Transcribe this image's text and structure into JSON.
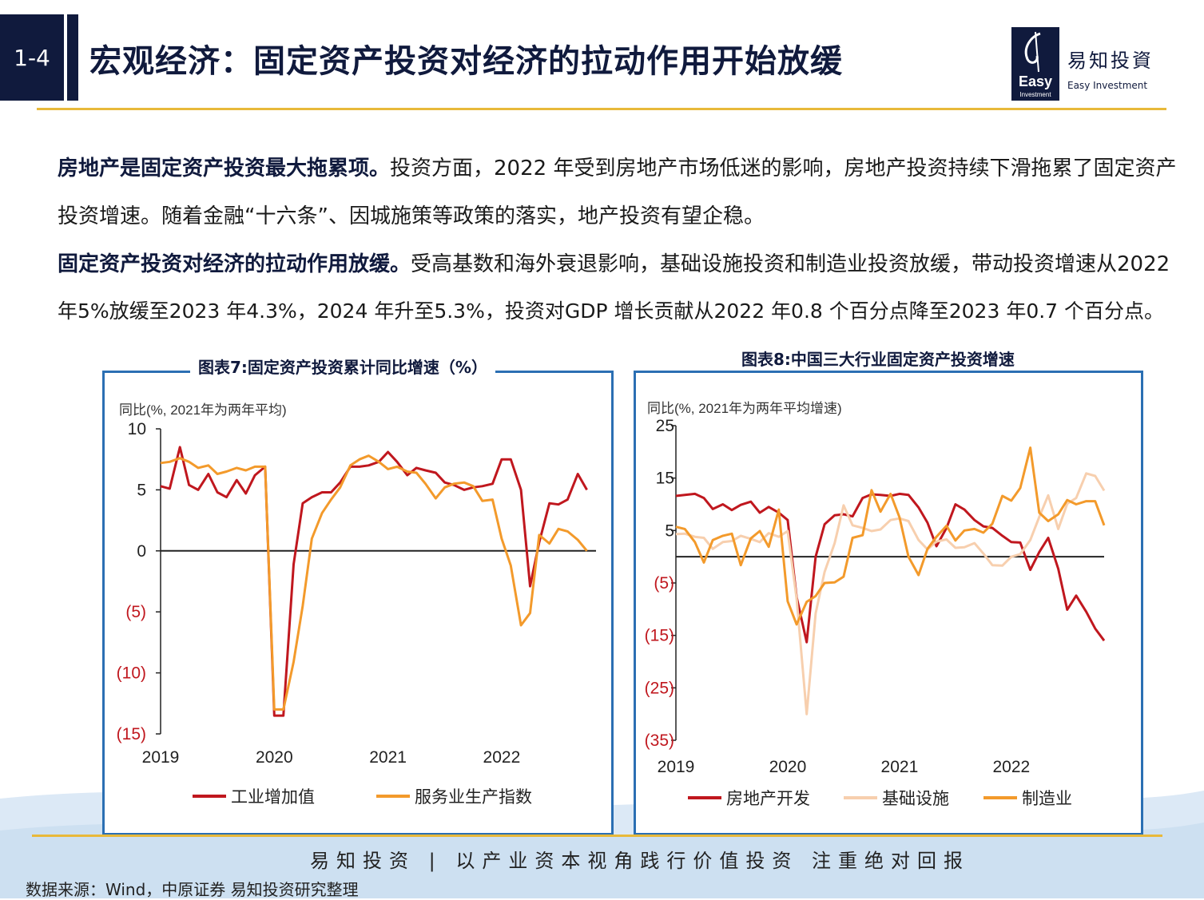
{
  "header": {
    "section_number": "1-4",
    "title": "宏观经济：固定资产投资对经济的拉动作用开始放缓",
    "logo_cn": "易知投資",
    "logo_en": "Easy Investment",
    "logo_mark": "Easy",
    "logo_mark_sub": "Investment"
  },
  "body": {
    "p1_bold": "房地产是固定资产投资最大拖累项。",
    "p1_rest": "投资方面，2022 年受到房地产市场低迷的影响，房地产投资持续下滑拖累了固定资产",
    "p1_line2": "投资增速。随着金融“十六条”、因城施策等政策的落实，地产投资有望企稳。",
    "p2_bold": "固定资产投资对经济的拉动作用放缓。",
    "p2_rest": "受高基数和海外衰退影响，基础设施投资和制造业投资放缓，带动投资增速从2022",
    "p2_line2": "年5%放缓至2023 年4.3%，2024 年升至5.3%，投资对GDP 增长贡献从2022 年0.8 个百分点降至2023 年0.7 个百分点。"
  },
  "colors": {
    "navy": "#101a3d",
    "red": "#c0171e",
    "orange": "#f39a2b",
    "peach": "#f7cfae",
    "gold": "#e8b93a",
    "frame": "#2b6fb3"
  },
  "chart_data": [
    {
      "type": "line",
      "title": "图表7:固定资产投资累计同比增速（%）",
      "ylabel": "同比(%, 2021年为两年平均)",
      "ylim": [
        -15,
        10
      ],
      "yticks": [
        10,
        5,
        0,
        -5,
        -10,
        -15
      ],
      "ytick_labels": [
        "10",
        "5",
        "0",
        "(5)",
        "(10)",
        "(15)"
      ],
      "xlim": [
        2019.0,
        2022.83
      ],
      "xticks": [
        2019,
        2020,
        2021,
        2022
      ],
      "xtick_labels": [
        "2019",
        "2020",
        "2021",
        "2022"
      ],
      "legend_position": "bottom",
      "series": [
        {
          "name": "工业增加值",
          "color": "#c0171e",
          "points": [
            [
              2019.0,
              5.3
            ],
            [
              2019.08,
              5.1
            ],
            [
              2019.17,
              8.5
            ],
            [
              2019.25,
              5.4
            ],
            [
              2019.33,
              5.0
            ],
            [
              2019.42,
              6.3
            ],
            [
              2019.5,
              4.8
            ],
            [
              2019.58,
              4.4
            ],
            [
              2019.67,
              5.8
            ],
            [
              2019.75,
              4.7
            ],
            [
              2019.83,
              6.2
            ],
            [
              2019.92,
              6.9
            ],
            [
              2020.0,
              -13.5
            ],
            [
              2020.08,
              -13.5
            ],
            [
              2020.17,
              -1.1
            ],
            [
              2020.25,
              3.9
            ],
            [
              2020.33,
              4.4
            ],
            [
              2020.42,
              4.8
            ],
            [
              2020.5,
              4.8
            ],
            [
              2020.58,
              5.6
            ],
            [
              2020.67,
              6.9
            ],
            [
              2020.75,
              6.9
            ],
            [
              2020.83,
              7.0
            ],
            [
              2020.92,
              7.3
            ],
            [
              2021.0,
              8.1
            ],
            [
              2021.08,
              7.3
            ],
            [
              2021.17,
              6.2
            ],
            [
              2021.25,
              6.8
            ],
            [
              2021.33,
              6.6
            ],
            [
              2021.42,
              6.4
            ],
            [
              2021.5,
              5.6
            ],
            [
              2021.58,
              5.4
            ],
            [
              2021.67,
              5.0
            ],
            [
              2021.75,
              5.2
            ],
            [
              2021.83,
              5.3
            ],
            [
              2021.92,
              5.5
            ],
            [
              2022.0,
              7.5
            ],
            [
              2022.08,
              7.5
            ],
            [
              2022.17,
              5.0
            ],
            [
              2022.25,
              -2.9
            ],
            [
              2022.33,
              0.7
            ],
            [
              2022.42,
              3.9
            ],
            [
              2022.5,
              3.8
            ],
            [
              2022.58,
              4.2
            ],
            [
              2022.67,
              6.3
            ],
            [
              2022.75,
              5.0
            ]
          ]
        },
        {
          "name": "服务业生产指数",
          "color": "#f39a2b",
          "points": [
            [
              2019.0,
              7.2
            ],
            [
              2019.08,
              7.3
            ],
            [
              2019.17,
              7.6
            ],
            [
              2019.25,
              7.3
            ],
            [
              2019.33,
              6.8
            ],
            [
              2019.42,
              7.0
            ],
            [
              2019.5,
              6.3
            ],
            [
              2019.58,
              6.5
            ],
            [
              2019.67,
              6.8
            ],
            [
              2019.75,
              6.6
            ],
            [
              2019.83,
              6.9
            ],
            [
              2019.92,
              6.9
            ],
            [
              2020.0,
              -13.0
            ],
            [
              2020.08,
              -13.0
            ],
            [
              2020.17,
              -9.1
            ],
            [
              2020.25,
              -4.5
            ],
            [
              2020.33,
              1.0
            ],
            [
              2020.42,
              3.1
            ],
            [
              2020.5,
              4.2
            ],
            [
              2020.58,
              5.2
            ],
            [
              2020.67,
              7.0
            ],
            [
              2020.75,
              7.5
            ],
            [
              2020.83,
              7.8
            ],
            [
              2020.92,
              7.3
            ],
            [
              2021.0,
              6.7
            ],
            [
              2021.08,
              6.9
            ],
            [
              2021.17,
              6.5
            ],
            [
              2021.25,
              6.4
            ],
            [
              2021.33,
              5.5
            ],
            [
              2021.42,
              4.3
            ],
            [
              2021.5,
              5.2
            ],
            [
              2021.58,
              5.5
            ],
            [
              2021.67,
              5.6
            ],
            [
              2021.75,
              5.3
            ],
            [
              2021.83,
              4.1
            ],
            [
              2021.92,
              4.2
            ],
            [
              2022.0,
              1.0
            ],
            [
              2022.08,
              -1.2
            ],
            [
              2022.17,
              -6.1
            ],
            [
              2022.25,
              -5.1
            ],
            [
              2022.33,
              1.3
            ],
            [
              2022.42,
              0.6
            ],
            [
              2022.5,
              1.8
            ],
            [
              2022.58,
              1.6
            ],
            [
              2022.67,
              0.9
            ],
            [
              2022.75,
              0.0
            ]
          ]
        }
      ]
    },
    {
      "type": "line",
      "title": "图表8:中国三大行业固定资产投资增速",
      "ylabel": "同比(%, 2021年为两年平均增速)",
      "ylim": [
        -35,
        25
      ],
      "yticks": [
        25,
        15,
        5,
        -5,
        -15,
        -25,
        -35
      ],
      "ytick_labels": [
        "25",
        "15",
        "5",
        "(5)",
        "(15)",
        "(25)",
        "(35)"
      ],
      "xlim": [
        2019.0,
        2022.83
      ],
      "xticks": [
        2019,
        2020,
        2021,
        2022
      ],
      "xtick_labels": [
        "2019",
        "2020",
        "2021",
        "2022"
      ],
      "legend_position": "bottom",
      "series": [
        {
          "name": "房地产开发",
          "color": "#c0171e",
          "points": [
            [
              2019.0,
              11.6
            ],
            [
              2019.08,
              11.8
            ],
            [
              2019.17,
              12.0
            ],
            [
              2019.25,
              11.2
            ],
            [
              2019.33,
              9.1
            ],
            [
              2019.42,
              10.0
            ],
            [
              2019.5,
              8.9
            ],
            [
              2019.58,
              9.9
            ],
            [
              2019.67,
              10.5
            ],
            [
              2019.75,
              8.4
            ],
            [
              2019.83,
              9.5
            ],
            [
              2019.92,
              8.4
            ],
            [
              2020.0,
              7.0
            ],
            [
              2020.08,
              -7.7
            ],
            [
              2020.17,
              -16.3
            ],
            [
              2020.25,
              0.0
            ],
            [
              2020.33,
              6.2
            ],
            [
              2020.42,
              7.9
            ],
            [
              2020.5,
              8.1
            ],
            [
              2020.58,
              7.7
            ],
            [
              2020.67,
              11.2
            ],
            [
              2020.75,
              11.9
            ],
            [
              2020.83,
              11.8
            ],
            [
              2020.92,
              11.6
            ],
            [
              2021.0,
              12.0
            ],
            [
              2021.08,
              11.8
            ],
            [
              2021.17,
              9.4
            ],
            [
              2021.25,
              6.5
            ],
            [
              2021.33,
              2.0
            ],
            [
              2021.42,
              5.5
            ],
            [
              2021.5,
              10.0
            ],
            [
              2021.58,
              9.0
            ],
            [
              2021.67,
              7.0
            ],
            [
              2021.75,
              5.8
            ],
            [
              2021.83,
              5.5
            ],
            [
              2021.92,
              4.0
            ],
            [
              2022.0,
              2.8
            ],
            [
              2022.08,
              2.7
            ],
            [
              2022.17,
              -2.5
            ],
            [
              2022.25,
              0.9
            ],
            [
              2022.33,
              3.6
            ],
            [
              2022.42,
              -2.3
            ],
            [
              2022.5,
              -10.1
            ],
            [
              2022.58,
              -7.4
            ],
            [
              2022.67,
              -10.5
            ],
            [
              2022.75,
              -13.7
            ],
            [
              2022.83,
              -16.0
            ]
          ]
        },
        {
          "name": "基础设施",
          "color": "#f7cfae",
          "points": [
            [
              2019.0,
              4.3
            ],
            [
              2019.08,
              4.4
            ],
            [
              2019.17,
              3.8
            ],
            [
              2019.25,
              3.6
            ],
            [
              2019.33,
              1.5
            ],
            [
              2019.42,
              2.8
            ],
            [
              2019.5,
              3.0
            ],
            [
              2019.58,
              4.0
            ],
            [
              2019.67,
              3.4
            ],
            [
              2019.75,
              2.8
            ],
            [
              2019.83,
              4.5
            ],
            [
              2019.92,
              3.8
            ],
            [
              2020.0,
              4.9
            ],
            [
              2020.08,
              -8.0
            ],
            [
              2020.17,
              -30.0
            ],
            [
              2020.25,
              -10.8
            ],
            [
              2020.33,
              -2.9
            ],
            [
              2020.42,
              2.6
            ],
            [
              2020.5,
              9.8
            ],
            [
              2020.58,
              6.0
            ],
            [
              2020.67,
              5.5
            ],
            [
              2020.75,
              4.9
            ],
            [
              2020.83,
              5.2
            ],
            [
              2020.92,
              7.0
            ],
            [
              2021.0,
              7.3
            ],
            [
              2021.08,
              6.8
            ],
            [
              2021.17,
              3.2
            ],
            [
              2021.25,
              1.4
            ],
            [
              2021.33,
              2.9
            ],
            [
              2021.42,
              3.3
            ],
            [
              2021.5,
              1.7
            ],
            [
              2021.58,
              1.8
            ],
            [
              2021.67,
              2.6
            ],
            [
              2021.75,
              0.6
            ],
            [
              2021.83,
              -1.6
            ],
            [
              2021.92,
              -1.7
            ],
            [
              2022.0,
              0.0
            ],
            [
              2022.08,
              0.5
            ],
            [
              2022.17,
              3.2
            ],
            [
              2022.25,
              7.6
            ],
            [
              2022.33,
              11.7
            ],
            [
              2022.42,
              5.3
            ],
            [
              2022.5,
              10.1
            ],
            [
              2022.58,
              11.2
            ],
            [
              2022.67,
              15.9
            ],
            [
              2022.75,
              15.4
            ],
            [
              2022.83,
              12.6
            ]
          ]
        },
        {
          "name": "制造业",
          "color": "#f39a2b",
          "points": [
            [
              2019.0,
              5.7
            ],
            [
              2019.08,
              5.3
            ],
            [
              2019.17,
              2.8
            ],
            [
              2019.25,
              -1.1
            ],
            [
              2019.33,
              3.2
            ],
            [
              2019.42,
              4.0
            ],
            [
              2019.5,
              4.4
            ],
            [
              2019.58,
              -1.6
            ],
            [
              2019.67,
              3.5
            ],
            [
              2019.75,
              4.9
            ],
            [
              2019.83,
              1.9
            ],
            [
              2019.92,
              9.0
            ],
            [
              2020.0,
              -8.5
            ],
            [
              2020.08,
              -12.9
            ],
            [
              2020.17,
              -8.6
            ],
            [
              2020.25,
              -7.5
            ],
            [
              2020.33,
              -5.0
            ],
            [
              2020.42,
              -4.9
            ],
            [
              2020.5,
              -3.8
            ],
            [
              2020.58,
              3.6
            ],
            [
              2020.67,
              4.1
            ],
            [
              2020.75,
              12.7
            ],
            [
              2020.83,
              8.6
            ],
            [
              2020.92,
              12.0
            ],
            [
              2021.0,
              7.5
            ],
            [
              2021.08,
              0.0
            ],
            [
              2021.17,
              -3.5
            ],
            [
              2021.25,
              1.5
            ],
            [
              2021.33,
              3.8
            ],
            [
              2021.42,
              5.9
            ],
            [
              2021.5,
              3.1
            ],
            [
              2021.58,
              5.0
            ],
            [
              2021.67,
              5.3
            ],
            [
              2021.75,
              4.6
            ],
            [
              2021.83,
              6.3
            ],
            [
              2021.92,
              11.6
            ],
            [
              2022.0,
              10.7
            ],
            [
              2022.08,
              13.1
            ],
            [
              2022.17,
              20.8
            ],
            [
              2022.25,
              8.4
            ],
            [
              2022.33,
              6.8
            ],
            [
              2022.42,
              8.1
            ],
            [
              2022.5,
              10.8
            ],
            [
              2022.58,
              10.0
            ],
            [
              2022.67,
              10.6
            ],
            [
              2022.75,
              10.6
            ],
            [
              2022.83,
              6.0
            ]
          ]
        }
      ]
    }
  ],
  "footer": {
    "slogan": "易知投资 | 以产业资本视角践行价值投资   注重绝对回报",
    "source": "数据来源：Wind，中原证券 易知投资研究整理"
  }
}
